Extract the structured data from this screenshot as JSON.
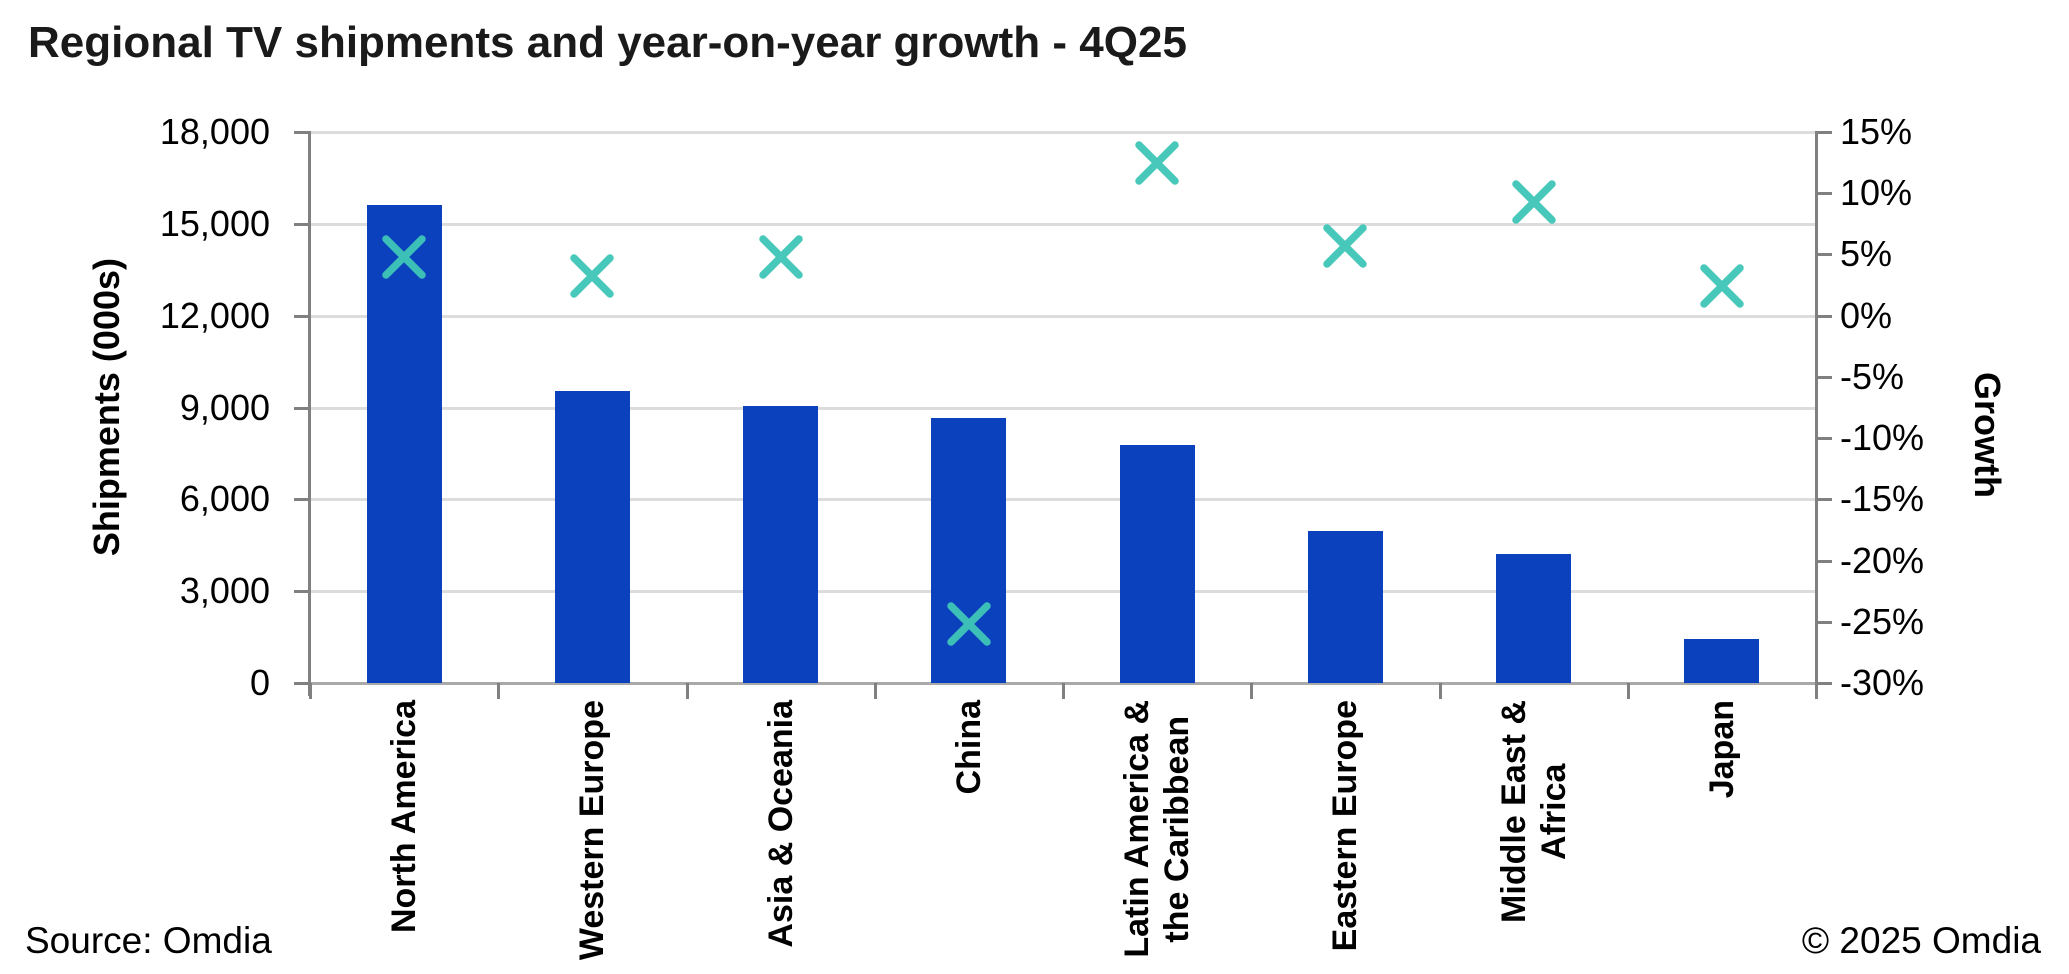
{
  "title": "Regional TV shipments and year-on-year growth - 4Q25",
  "footer": {
    "source": "Source: Omdia",
    "copyright": "© 2025 Omdia"
  },
  "colors": {
    "bar": "#0C41BE",
    "marker": "#3EC6B7",
    "gridline": "#DCDCDC",
    "axis_line": "#808080",
    "baseline": "#A9A9A9",
    "text": "#000000"
  },
  "chart_data": {
    "type": "bar",
    "subtype": "column chart with secondary-axis scatter (x markers)",
    "title": "Regional TV shipments and year-on-year growth - 4Q25",
    "categories": [
      "North America",
      "Western Europe",
      "Asia & Oceania",
      "China",
      "Latin America & the Caribbean",
      "Eastern Europe",
      "Middle East & Africa",
      "Japan"
    ],
    "category_label_lines": [
      [
        "North America"
      ],
      [
        "Western Europe"
      ],
      [
        "Asia & Oceania"
      ],
      [
        "China"
      ],
      [
        "Latin America &",
        "the Caribbean"
      ],
      [
        "Eastern Europe"
      ],
      [
        "Middle East &",
        "Africa"
      ],
      [
        "Japan"
      ]
    ],
    "series": [
      {
        "name": "Shipments (000s)",
        "type": "bar",
        "axis": "left",
        "color": "#0C41BE",
        "values": [
          15600,
          9550,
          9050,
          8670,
          7790,
          4960,
          4200,
          1440
        ]
      },
      {
        "name": "Growth",
        "type": "scatter",
        "marker": "x",
        "axis": "right",
        "color": "#3EC6B7",
        "values_pct": [
          4.8,
          3.2,
          4.8,
          -25.2,
          12.5,
          5.7,
          9.3,
          2.4
        ]
      }
    ],
    "left_axis": {
      "title": "Shipments (000s)",
      "min": 0,
      "max": 18000,
      "step": 3000,
      "tick_labels": [
        "18,000",
        "15,000",
        "12,000",
        "9,000",
        "6,000",
        "3,000",
        "0"
      ]
    },
    "right_axis": {
      "title": "Growth",
      "min": -30,
      "max": 15,
      "step": 5,
      "tick_labels": [
        "15%",
        "10%",
        "5%",
        "0%",
        "-5%",
        "-10%",
        "-15%",
        "-20%",
        "-25%",
        "-30%"
      ]
    },
    "grid": "horizontal gridlines at left-axis ticks",
    "legend": "none"
  }
}
